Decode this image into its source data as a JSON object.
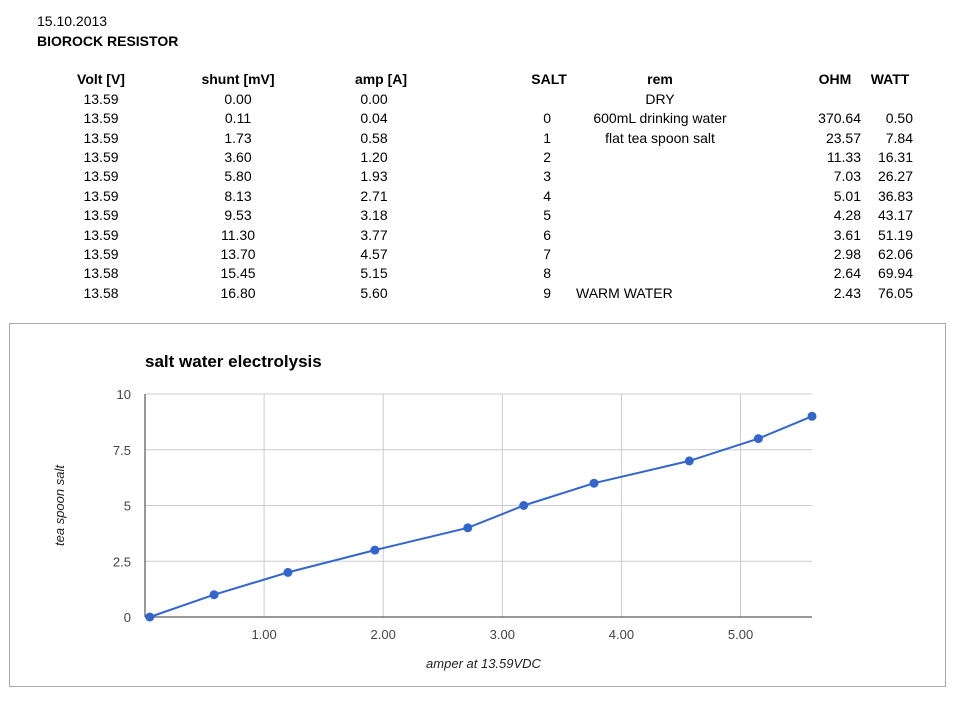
{
  "header": {
    "date": "15.10.2013",
    "title": "BIOROCK RESISTOR"
  },
  "table": {
    "columns": [
      "Volt [V]",
      "shunt [mV]",
      "amp [A]",
      "SALT",
      "rem",
      "OHM",
      "WATT"
    ],
    "rows": [
      [
        "13.59",
        "0.00",
        "0.00",
        "",
        "DRY",
        "",
        ""
      ],
      [
        "13.59",
        "0.11",
        "0.04",
        "0",
        "600mL drinking water",
        "370.64",
        "0.50"
      ],
      [
        "13.59",
        "1.73",
        "0.58",
        "1",
        "flat tea spoon salt",
        "23.57",
        "7.84"
      ],
      [
        "13.59",
        "3.60",
        "1.20",
        "2",
        "",
        "11.33",
        "16.31"
      ],
      [
        "13.59",
        "5.80",
        "1.93",
        "3",
        "",
        "7.03",
        "26.27"
      ],
      [
        "13.59",
        "8.13",
        "2.71",
        "4",
        "",
        "5.01",
        "36.83"
      ],
      [
        "13.59",
        "9.53",
        "3.18",
        "5",
        "",
        "4.28",
        "43.17"
      ],
      [
        "13.59",
        "11.30",
        "3.77",
        "6",
        "",
        "3.61",
        "51.19"
      ],
      [
        "13.59",
        "13.70",
        "4.57",
        "7",
        "",
        "2.98",
        "62.06"
      ],
      [
        "13.58",
        "15.45",
        "5.15",
        "8",
        "",
        "2.64",
        "69.94"
      ],
      [
        "13.58",
        "16.80",
        "5.60",
        "9",
        "WARM WATER",
        "2.43",
        "76.05"
      ]
    ]
  },
  "chart_data": {
    "type": "line",
    "title": "salt water electrolysis",
    "xlabel": "amper at 13.59VDC",
    "ylabel": "tea spoon salt",
    "xlim": [
      0,
      5.6
    ],
    "ylim": [
      0,
      10
    ],
    "xticks": [
      "1.00",
      "2.00",
      "3.00",
      "4.00",
      "5.00"
    ],
    "xtick_values": [
      1,
      2,
      3,
      4,
      5
    ],
    "yticks": [
      "0",
      "2.5",
      "5",
      "7.5",
      "10"
    ],
    "ytick_values": [
      0,
      2.5,
      5,
      7.5,
      10
    ],
    "grid": true,
    "line_color": "#3366cc",
    "series": [
      {
        "x": [
          0.04,
          0.58,
          1.2,
          1.93,
          2.71,
          3.18,
          3.77,
          4.57,
          5.15,
          5.6
        ],
        "y": [
          0,
          1,
          2,
          3,
          4,
          5,
          6,
          7,
          8,
          9
        ]
      }
    ]
  }
}
